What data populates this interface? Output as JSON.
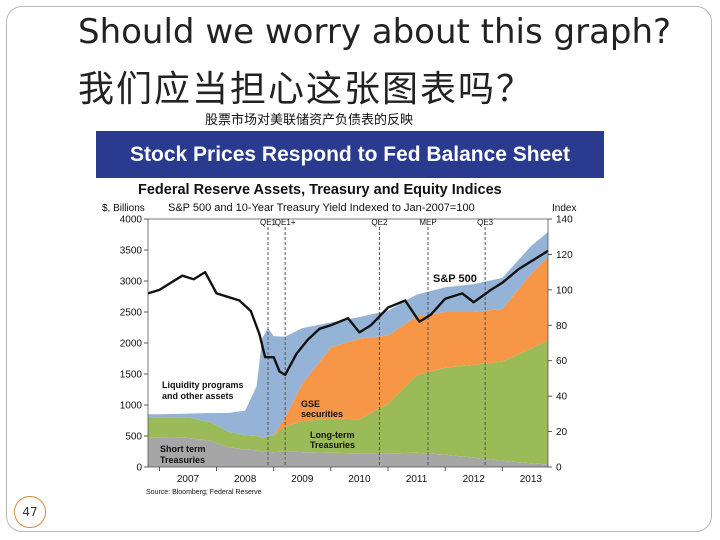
{
  "slide": {
    "title_en": "Should we worry about this graph?",
    "title_cn": "我们应当担心这张图表吗？",
    "subtitle_cn": "股票市场对美联储资产负债表的反映",
    "banner": "Stock Prices Respond to Fed Balance Sheet",
    "slide_number": "47"
  },
  "chart_data": {
    "type": "area",
    "title": "Federal Reserve Assets, Treasury and Equity Indices",
    "subtitle": "S&P 500 and 10-Year Treasury Yield Indexed to Jan-2007=100",
    "ylabel_left": "$, Billions",
    "ylabel_right": "Index",
    "ylim_left": [
      0,
      4000
    ],
    "ylim_right": [
      0,
      140
    ],
    "yticks_left": [
      "0",
      "500",
      "1000",
      "1500",
      "2000",
      "2500",
      "3000",
      "3500",
      "4000"
    ],
    "yticks_right": [
      "0",
      "20",
      "40",
      "60",
      "80",
      "100",
      "120",
      "140"
    ],
    "xlim": [
      2006.8,
      2013.8
    ],
    "xticks": [
      "2007",
      "2008",
      "2009",
      "2010",
      "2011",
      "2012",
      "2013"
    ],
    "x": [
      2006.8,
      2007.0,
      2007.5,
      2007.9,
      2008.2,
      2008.5,
      2008.7,
      2008.8,
      2008.9,
      2009.0,
      2009.2,
      2009.5,
      2010.0,
      2010.5,
      2011.0,
      2011.5,
      2012.0,
      2012.5,
      2013.0,
      2013.5,
      2013.8
    ],
    "series": [
      {
        "name": "Short term Treasuries",
        "color": "#a6a6a6",
        "values": [
          480,
          480,
          470,
          420,
          320,
          280,
          270,
          250,
          240,
          240,
          250,
          240,
          230,
          220,
          220,
          230,
          200,
          150,
          100,
          60,
          40
        ]
      },
      {
        "name": "Long-term Treasuries",
        "color": "#9bbb59",
        "values": [
          320,
          320,
          330,
          300,
          250,
          230,
          230,
          230,
          250,
          270,
          400,
          500,
          550,
          550,
          800,
          1250,
          1400,
          1500,
          1600,
          1850,
          2000
        ]
      },
      {
        "name": "GSE securities",
        "color": "#f79646",
        "values": [
          0,
          0,
          0,
          0,
          0,
          0,
          0,
          0,
          0,
          0,
          150,
          600,
          1150,
          1300,
          1100,
          950,
          900,
          850,
          850,
          1200,
          1350
        ]
      },
      {
        "name": "Liquidity programs and other assets",
        "color": "#95b3d7",
        "values": [
          50,
          50,
          60,
          150,
          300,
          400,
          800,
          1600,
          1750,
          1600,
          1300,
          900,
          400,
          350,
          400,
          350,
          400,
          450,
          500,
          450,
          400
        ]
      }
    ],
    "sp500": {
      "name": "S&P 500",
      "axis": "right",
      "x": [
        2006.8,
        2007.0,
        2007.2,
        2007.4,
        2007.6,
        2007.8,
        2008.0,
        2008.2,
        2008.4,
        2008.6,
        2008.75,
        2008.85,
        2009.0,
        2009.1,
        2009.2,
        2009.4,
        2009.6,
        2009.8,
        2010.0,
        2010.3,
        2010.5,
        2010.7,
        2011.0,
        2011.3,
        2011.55,
        2011.75,
        2012.0,
        2012.3,
        2012.5,
        2012.8,
        2013.0,
        2013.3,
        2013.6,
        2013.8
      ],
      "values": [
        98,
        100,
        104,
        108,
        106,
        110,
        98,
        96,
        94,
        88,
        75,
        62,
        62,
        54,
        52,
        64,
        72,
        78,
        80,
        84,
        76,
        80,
        90,
        94,
        82,
        86,
        95,
        98,
        93,
        100,
        104,
        112,
        118,
        122
      ]
    },
    "events": [
      {
        "label": "QE1",
        "x": 2008.9
      },
      {
        "label": "QE1+",
        "x": 2009.2
      },
      {
        "label": "QE2",
        "x": 2010.85
      },
      {
        "label": "MEP",
        "x": 2011.7
      },
      {
        "label": "QE3",
        "x": 2012.7
      }
    ],
    "annotations": {
      "sp500_label": "S&P 500",
      "liquidity_line1": "Liquidity programs",
      "liquidity_line2": "and other assets",
      "gse_line1": "GSE",
      "gse_line2": "securities",
      "lt_line1": "Long-term",
      "lt_line2": "Treasuries",
      "st_line1": "Short term",
      "st_line2": "Treasuries"
    },
    "source": "Source: Bloomberg; Federal Reserve"
  }
}
